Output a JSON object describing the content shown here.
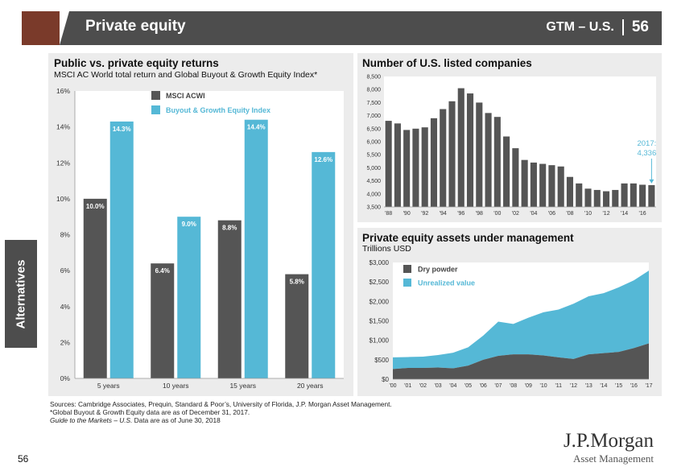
{
  "header": {
    "title": "Private equity",
    "section": "GTM – U.S.",
    "page": "56"
  },
  "side_tab": {
    "label": "Alternatives"
  },
  "left_chart": {
    "title": "Public vs. private equity returns",
    "subtitle": "MSCI AC World total return and Global Buyout & Growth Equity Index*"
  },
  "top_right_chart": {
    "title": "Number of U.S. listed companies"
  },
  "bottom_right_chart": {
    "title": "Private equity assets under management",
    "subtitle": "Trillions USD"
  },
  "footer": {
    "sources": "Sources: Cambridge Associates, Prequin, Standard & Poor’s, University of Florida, J.P. Morgan Asset Management.",
    "note": "*Global Buyout & Growth Equity data are as of December 31, 2017.",
    "guide_italic": "Guide to the Markets – U.S.",
    "guide_rest": " Data are as of June 30, 2018",
    "page_number": "56"
  },
  "logo": {
    "line1": "J.P.Morgan",
    "line2": "Asset Management"
  },
  "colors": {
    "dark": "#555555",
    "light": "#55b8d6",
    "header": "#4d4d4d",
    "accent": "#7a3a2a"
  },
  "chart_data": [
    {
      "type": "bar",
      "categories": [
        "5 years",
        "10 years",
        "15 years",
        "20 years"
      ],
      "series": [
        {
          "name": "MSCI ACWI",
          "values": [
            10.0,
            6.4,
            8.8,
            5.8
          ],
          "labels": [
            "10.0%",
            "6.4%",
            "8.8%",
            "5.8%"
          ]
        },
        {
          "name": "Buyout & Growth Equity Index",
          "values": [
            14.3,
            9.0,
            14.4,
            12.6
          ],
          "labels": [
            "14.3%",
            "9.0%",
            "14.4%",
            "12.6%"
          ]
        }
      ],
      "ylim": [
        0,
        16
      ],
      "yticks": [
        "0%",
        "2%",
        "4%",
        "6%",
        "8%",
        "10%",
        "12%",
        "14%",
        "16%"
      ],
      "legend": "top-center"
    },
    {
      "type": "bar",
      "x": [
        1988,
        1989,
        1990,
        1991,
        1992,
        1993,
        1994,
        1995,
        1996,
        1997,
        1998,
        1999,
        2000,
        2001,
        2002,
        2003,
        2004,
        2005,
        2006,
        2007,
        2008,
        2009,
        2010,
        2011,
        2012,
        2013,
        2014,
        2015,
        2016,
        2017
      ],
      "values": [
        6800,
        6700,
        6450,
        6500,
        6550,
        6900,
        7250,
        7550,
        8050,
        7850,
        7500,
        7100,
        6950,
        6200,
        5750,
        5300,
        5200,
        5150,
        5100,
        5050,
        4650,
        4400,
        4200,
        4150,
        4100,
        4150,
        4400,
        4400,
        4350,
        4336
      ],
      "xticks": [
        "'88",
        "'90",
        "'92",
        "'94",
        "'96",
        "'98",
        "'00",
        "'02",
        "'04",
        "'06",
        "'08",
        "'10",
        "'12",
        "'14",
        "'16"
      ],
      "ylim": [
        3500,
        8500
      ],
      "yticks": [
        "3,500",
        "4,000",
        "4,500",
        "5,000",
        "5,500",
        "6,000",
        "6,500",
        "7,000",
        "7,500",
        "8,000",
        "8,500"
      ],
      "annotation": {
        "line1": "2017:",
        "line2": "4,336"
      }
    },
    {
      "type": "area",
      "x": [
        2000,
        2001,
        2002,
        2003,
        2004,
        2005,
        2006,
        2007,
        2008,
        2009,
        2010,
        2011,
        2012,
        2013,
        2014,
        2015,
        2016,
        2017
      ],
      "series": [
        {
          "name": "Dry powder",
          "values": [
            260,
            290,
            290,
            300,
            280,
            350,
            500,
            600,
            640,
            640,
            610,
            560,
            520,
            640,
            670,
            700,
            800,
            920
          ]
        },
        {
          "name": "Unrealized value",
          "values": [
            300,
            280,
            290,
            320,
            400,
            470,
            620,
            880,
            780,
            940,
            1110,
            1230,
            1420,
            1490,
            1540,
            1660,
            1740,
            1870
          ]
        }
      ],
      "xticks": [
        "'00",
        "'01",
        "'02",
        "'03",
        "'04",
        "'05",
        "'06",
        "'07",
        "'08",
        "'09",
        "'10",
        "'11",
        "'12",
        "'13",
        "'14",
        "'15",
        "'16",
        "'17"
      ],
      "ylim": [
        0,
        3000
      ],
      "yticks": [
        "$0",
        "$500",
        "$1,000",
        "$1,500",
        "$2,000",
        "$2,500",
        "$3,000"
      ],
      "legend": "top-left"
    }
  ]
}
